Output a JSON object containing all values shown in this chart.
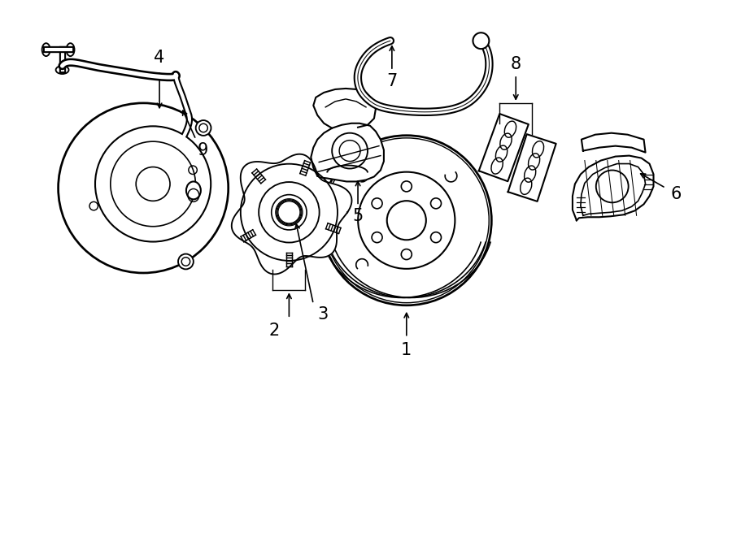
{
  "background_color": "#ffffff",
  "line_color": "#000000",
  "line_width": 1.5
}
